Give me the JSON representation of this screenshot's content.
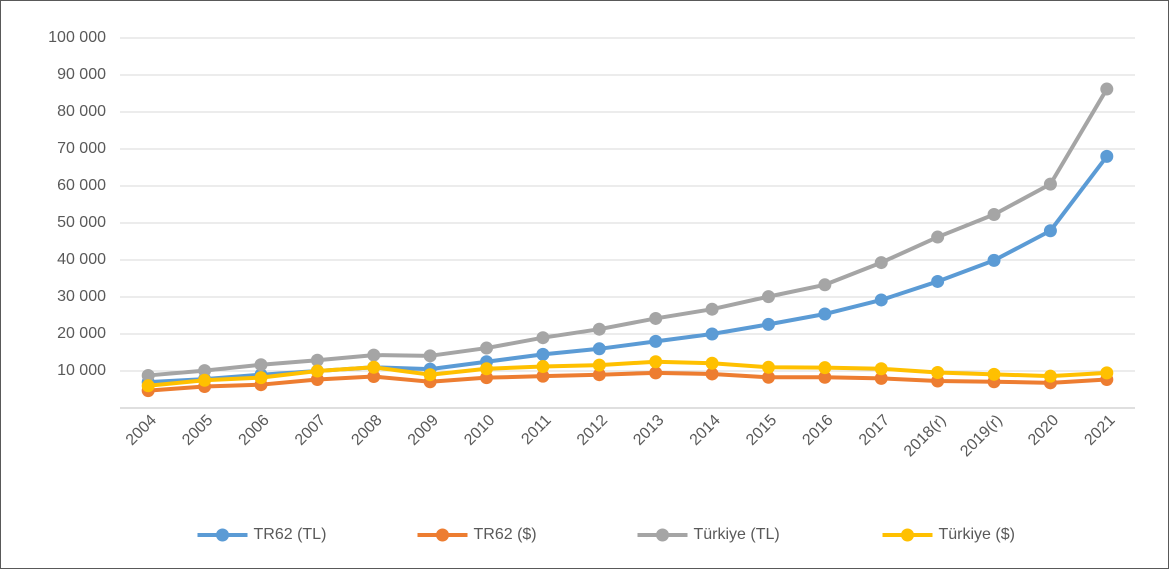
{
  "chart_data": {
    "type": "line",
    "categories": [
      "2004",
      "2005",
      "2006",
      "2007",
      "2008",
      "2009",
      "2010",
      "2011",
      "2012",
      "2013",
      "2014",
      "2015",
      "2016",
      "2017",
      "2018(r)",
      "2019(r)",
      "2020",
      "2021"
    ],
    "series": [
      {
        "name": "TR62 (TL)",
        "color": "#5b9bd5",
        "values": [
          7000,
          7800,
          9000,
          10000,
          11000,
          10500,
          12500,
          14500,
          16000,
          18000,
          20000,
          22600,
          25400,
          29200,
          34200,
          39900,
          47900,
          68000
        ]
      },
      {
        "name": "TR62 ($)",
        "color": "#ed7d31",
        "values": [
          4700,
          5800,
          6300,
          7700,
          8500,
          7100,
          8200,
          8600,
          9000,
          9500,
          9200,
          8300,
          8300,
          8000,
          7300,
          7100,
          6800,
          7700
        ]
      },
      {
        "name": "Türkiye (TL)",
        "color": "#a5a5a5",
        "values": [
          8800,
          10100,
          11700,
          12900,
          14300,
          14100,
          16200,
          19000,
          21300,
          24200,
          26700,
          30100,
          33300,
          39300,
          46200,
          52300,
          60500,
          86200
        ]
      },
      {
        "name": "Türkiye ($)",
        "color": "#ffc000",
        "values": [
          6000,
          7500,
          8200,
          10000,
          11000,
          9000,
          10600,
          11200,
          11600,
          12500,
          12100,
          11000,
          10900,
          10600,
          9600,
          9100,
          8600,
          9500
        ]
      }
    ],
    "ylim": [
      0,
      100000
    ],
    "yticks": [
      {
        "value": 10000,
        "label": "10 000"
      },
      {
        "value": 20000,
        "label": "20 000"
      },
      {
        "value": 30000,
        "label": "30 000"
      },
      {
        "value": 40000,
        "label": "40 000"
      },
      {
        "value": 50000,
        "label": "50 000"
      },
      {
        "value": 60000,
        "label": "60 000"
      },
      {
        "value": 70000,
        "label": "70 000"
      },
      {
        "value": 80000,
        "label": "80 000"
      },
      {
        "value": 90000,
        "label": "90 000"
      },
      {
        "value": 100000,
        "label": "100 000"
      }
    ],
    "grid": true,
    "legend": "bottom"
  }
}
